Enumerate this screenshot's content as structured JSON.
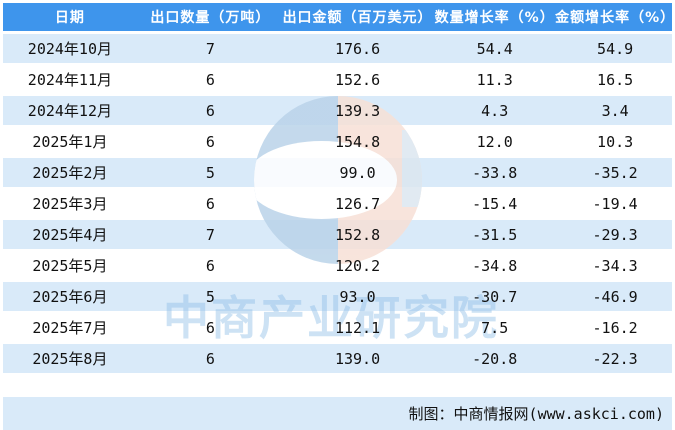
{
  "chart_data": {
    "type": "table",
    "columns": [
      "日期",
      "出口数量（万吨）",
      "出口金额（百万美元）",
      "数量增长率（%）",
      "金额增长率（%）"
    ],
    "rows": [
      [
        "2024年10月",
        "7",
        "176.6",
        "54.4",
        "54.9"
      ],
      [
        "2024年11月",
        "6",
        "152.6",
        "11.3",
        "16.5"
      ],
      [
        "2024年12月",
        "6",
        "139.3",
        "4.3",
        "3.4"
      ],
      [
        "2025年1月",
        "6",
        "154.8",
        "12.0",
        "10.3"
      ],
      [
        "2025年2月",
        "5",
        "99.0",
        "-33.8",
        "-35.2"
      ],
      [
        "2025年3月",
        "6",
        "126.7",
        "-15.4",
        "-19.4"
      ],
      [
        "2025年4月",
        "7",
        "152.8",
        "-31.5",
        "-29.3"
      ],
      [
        "2025年5月",
        "6",
        "120.2",
        "-34.8",
        "-34.3"
      ],
      [
        "2025年6月",
        "5",
        "93.0",
        "-30.7",
        "-46.9"
      ],
      [
        "2025年7月",
        "6",
        "112.1",
        "7.5",
        "-16.2"
      ],
      [
        "2025年8月",
        "6",
        "139.0",
        "-20.8",
        "-22.3"
      ]
    ],
    "legend_position": "none",
    "grid": "row-stripes"
  },
  "watermark": {
    "text": "中商产业研究院"
  },
  "footer": {
    "credit": "制图：中商情报网(www.askci.com)"
  },
  "colors": {
    "header_bg": "#3E95EC",
    "header_text": "#FFFFFF",
    "row_stripe": "#D9EAF9",
    "row_white": "#FFFFFF",
    "footer_bg": "#D9EAF9",
    "body_text": "#111111",
    "logo_blue": "#BAD3E9",
    "logo_orange": "#F7E0D6",
    "watermark_text_blue": "#90BEE7"
  }
}
